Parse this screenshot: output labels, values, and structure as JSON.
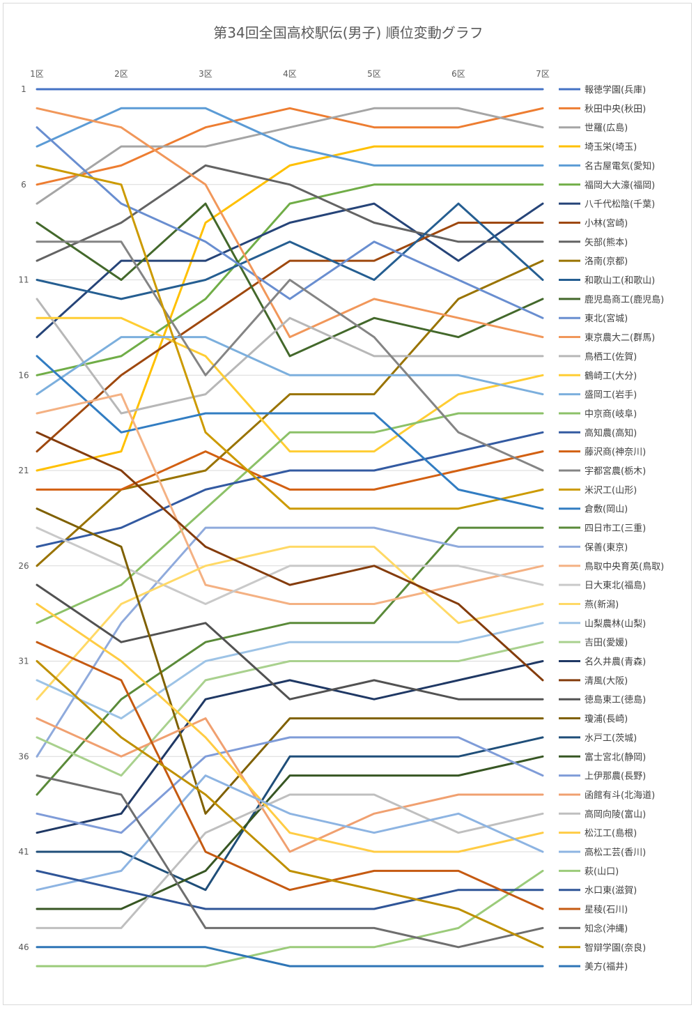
{
  "chart_data": {
    "type": "line",
    "title": "第34回全国高校駅伝(男子) 順位変動グラフ",
    "xlabel": "",
    "ylabel": "",
    "categories": [
      "1区",
      "2区",
      "3区",
      "4区",
      "5区",
      "6区",
      "7区"
    ],
    "y_tick_labels": [
      "1",
      "6",
      "11",
      "16",
      "21",
      "26",
      "31",
      "36",
      "41",
      "46"
    ],
    "ylim": [
      1,
      47
    ],
    "y_reversed": true,
    "grid": true,
    "legend_position": "right",
    "series": [
      {
        "name": "報徳学園(兵庫)",
        "color": "#4472C4",
        "values": [
          1,
          1,
          1,
          1,
          1,
          1,
          1
        ]
      },
      {
        "name": "秋田中央(秋田)",
        "color": "#ED7D31",
        "values": [
          6,
          5,
          3,
          2,
          3,
          3,
          2
        ]
      },
      {
        "name": "世羅(広島)",
        "color": "#A5A5A5",
        "values": [
          7,
          4,
          4,
          3,
          2,
          2,
          3
        ]
      },
      {
        "name": "埼玉栄(埼玉)",
        "color": "#FFC000",
        "values": [
          21,
          20,
          8,
          5,
          4,
          4,
          4
        ]
      },
      {
        "name": "名古屋電気(愛知)",
        "color": "#5B9BD5",
        "values": [
          4,
          2,
          2,
          4,
          5,
          5,
          5
        ]
      },
      {
        "name": "福岡大大濠(福岡)",
        "color": "#70AD47",
        "values": [
          16,
          15,
          12,
          7,
          6,
          6,
          6
        ]
      },
      {
        "name": "八千代松陰(千葉)",
        "color": "#264478",
        "values": [
          14,
          10,
          10,
          8,
          7,
          10,
          7
        ]
      },
      {
        "name": "小林(宮崎)",
        "color": "#9E480E",
        "values": [
          20,
          16,
          13,
          10,
          10,
          8,
          8
        ]
      },
      {
        "name": "矢部(熊本)",
        "color": "#636363",
        "values": [
          10,
          8,
          5,
          6,
          8,
          9,
          9
        ]
      },
      {
        "name": "洛南(京都)",
        "color": "#997300",
        "values": [
          26,
          22,
          21,
          17,
          17,
          12,
          10
        ]
      },
      {
        "name": "和歌山工(和歌山)",
        "color": "#255E91",
        "values": [
          11,
          12,
          11,
          9,
          11,
          7,
          11
        ]
      },
      {
        "name": "鹿児島商工(鹿児島)",
        "color": "#43682B",
        "values": [
          8,
          11,
          7,
          15,
          13,
          14,
          12
        ]
      },
      {
        "name": "東北(宮城)",
        "color": "#698ED0",
        "values": [
          3,
          7,
          9,
          12,
          9,
          11,
          13
        ]
      },
      {
        "name": "東京農大二(群馬)",
        "color": "#F1975A",
        "values": [
          2,
          3,
          6,
          14,
          12,
          13,
          14
        ]
      },
      {
        "name": "鳥栖工(佐賀)",
        "color": "#B7B7B7",
        "values": [
          12,
          18,
          17,
          13,
          15,
          15,
          15
        ]
      },
      {
        "name": "鶴崎工(大分)",
        "color": "#FFCD33",
        "values": [
          13,
          13,
          15,
          20,
          20,
          17,
          16
        ]
      },
      {
        "name": "盛岡工(岩手)",
        "color": "#7CAFDD",
        "values": [
          17,
          14,
          14,
          16,
          16,
          16,
          17
        ]
      },
      {
        "name": "中京商(岐阜)",
        "color": "#8CC168",
        "values": [
          29,
          27,
          23,
          19,
          19,
          18,
          18
        ]
      },
      {
        "name": "高知農(高知)",
        "color": "#335AA1",
        "values": [
          25,
          24,
          22,
          21,
          21,
          20,
          19
        ]
      },
      {
        "name": "藤沢商(神奈川)",
        "color": "#D26012",
        "values": [
          22,
          22,
          20,
          22,
          22,
          21,
          20
        ]
      },
      {
        "name": "宇都宮農(栃木)",
        "color": "#848484",
        "values": [
          9,
          9,
          16,
          11,
          14,
          19,
          21
        ]
      },
      {
        "name": "米沢工(山形)",
        "color": "#CC9A00",
        "values": [
          5,
          6,
          19,
          23,
          23,
          23,
          22
        ]
      },
      {
        "name": "倉敷(岡山)",
        "color": "#327DC2",
        "values": [
          15,
          19,
          18,
          18,
          18,
          22,
          23
        ]
      },
      {
        "name": "四日市工(三重)",
        "color": "#5A8A39",
        "values": [
          38,
          33,
          30,
          29,
          29,
          24,
          24
        ]
      },
      {
        "name": "保善(東京)",
        "color": "#8FAADC",
        "values": [
          36,
          29,
          24,
          24,
          24,
          25,
          25
        ]
      },
      {
        "name": "鳥取中央育英(鳥取)",
        "color": "#F4B183",
        "values": [
          18,
          17,
          27,
          28,
          28,
          27,
          26
        ]
      },
      {
        "name": "日大東北(福島)",
        "color": "#C9C9C9",
        "values": [
          24,
          26,
          28,
          26,
          26,
          26,
          27
        ]
      },
      {
        "name": "燕(新潟)",
        "color": "#FFD966",
        "values": [
          33,
          28,
          26,
          25,
          25,
          29,
          28
        ]
      },
      {
        "name": "山梨農林(山梨)",
        "color": "#9DC3E6",
        "values": [
          32,
          34,
          31,
          30,
          30,
          30,
          29
        ]
      },
      {
        "name": "吉田(愛媛)",
        "color": "#A9D18E",
        "values": [
          35,
          37,
          32,
          31,
          31,
          31,
          30
        ]
      },
      {
        "name": "名久井農(青森)",
        "color": "#1F3864",
        "values": [
          40,
          39,
          33,
          32,
          33,
          32,
          31
        ]
      },
      {
        "name": "清風(大阪)",
        "color": "#843C0C",
        "values": [
          19,
          21,
          25,
          27,
          26,
          28,
          32
        ]
      },
      {
        "name": "徳島東工(徳島)",
        "color": "#525252",
        "values": [
          27,
          30,
          29,
          33,
          32,
          33,
          33
        ]
      },
      {
        "name": "瓊浦(長崎)",
        "color": "#7F6000",
        "values": [
          23,
          25,
          39,
          34,
          34,
          34,
          34
        ]
      },
      {
        "name": "水戸工(茨城)",
        "color": "#1F4E79",
        "values": [
          41,
          41,
          43,
          36,
          36,
          36,
          35
        ]
      },
      {
        "name": "富士宮北(静岡)",
        "color": "#375623",
        "values": [
          44,
          44,
          42,
          37,
          37,
          37,
          36
        ]
      },
      {
        "name": "上伊那農(長野)",
        "color": "#7F9CD8",
        "values": [
          39,
          40,
          36,
          35,
          35,
          35,
          37
        ]
      },
      {
        "name": "函館有斗(北海道)",
        "color": "#F0A070",
        "values": [
          34,
          36,
          34,
          41,
          39,
          38,
          38
        ]
      },
      {
        "name": "高岡向陵(富山)",
        "color": "#BFBFBF",
        "values": [
          45,
          45,
          40,
          38,
          38,
          40,
          39
        ]
      },
      {
        "name": "松江工(島根)",
        "color": "#FFCC44",
        "values": [
          28,
          31,
          35,
          40,
          41,
          41,
          40
        ]
      },
      {
        "name": "高松工芸(香川)",
        "color": "#8DB4E2",
        "values": [
          43,
          42,
          37,
          39,
          40,
          39,
          41
        ]
      },
      {
        "name": "萩(山口)",
        "color": "#9BCB7A",
        "values": [
          47,
          47,
          47,
          46,
          46,
          45,
          42
        ]
      },
      {
        "name": "水口東(滋賀)",
        "color": "#2F5597",
        "values": [
          42,
          43,
          44,
          44,
          44,
          43,
          43
        ]
      },
      {
        "name": "星稜(石川)",
        "color": "#C55A11",
        "values": [
          30,
          32,
          41,
          43,
          42,
          42,
          44
        ]
      },
      {
        "name": "知念(沖縄)",
        "color": "#6E6E6E",
        "values": [
          37,
          38,
          45,
          45,
          45,
          46,
          45
        ]
      },
      {
        "name": "智辯学園(奈良)",
        "color": "#BF9000",
        "values": [
          31,
          35,
          38,
          42,
          43,
          44,
          46
        ]
      },
      {
        "name": "美方(福井)",
        "color": "#2E75B6",
        "values": [
          46,
          46,
          46,
          47,
          47,
          47,
          47
        ]
      }
    ]
  }
}
